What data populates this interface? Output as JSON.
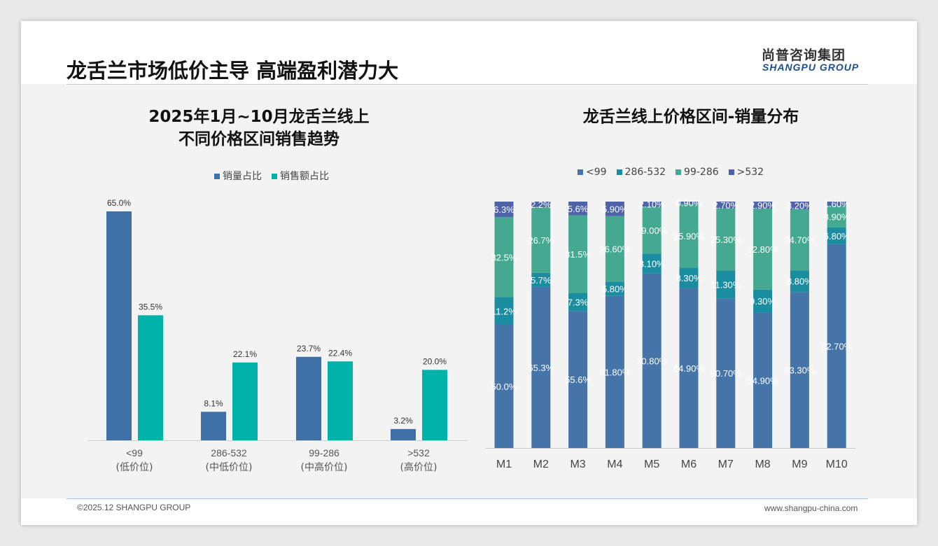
{
  "header": {
    "title": "龙舌兰市场低价主导 高端盈利潜力大",
    "logo_cn": "尚普咨询集团",
    "logo_en": "SHANGPU GROUP"
  },
  "footer": {
    "copyright": "©2025.12 SHANGPU GROUP",
    "website": "www.shangpu-china.com"
  },
  "chart_data": [
    {
      "type": "bar",
      "title": "2025年1月~10月龙舌兰线上",
      "subtitle": "不同价格区间销售趋势",
      "categories": [
        "<99",
        "286-532",
        "99-286",
        ">532"
      ],
      "category_sublabels": [
        "(低价位)",
        "(中低价位)",
        "(中高价位)",
        "(高价位)"
      ],
      "series": [
        {
          "name": "销量占比",
          "color": "#3f70a8",
          "values": [
            65.0,
            8.1,
            23.7,
            3.2
          ]
        },
        {
          "name": "销售额占比",
          "color": "#00b2a9",
          "values": [
            35.5,
            22.1,
            22.4,
            20.0
          ]
        }
      ],
      "ylim": [
        0,
        70
      ],
      "legend": "top",
      "unit": "%"
    },
    {
      "type": "stacked-bar",
      "title": "龙舌兰线上价格区间-销量分布",
      "categories": [
        "M1",
        "M2",
        "M3",
        "M4",
        "M5",
        "M6",
        "M7",
        "M8",
        "M9",
        "M10"
      ],
      "series": [
        {
          "name": "<99",
          "color": "#4574a9",
          "values": [
            50.0,
            65.3,
            55.6,
            61.8,
            70.8,
            64.9,
            60.7,
            54.9,
            63.3,
            82.7
          ],
          "labels": [
            "50.0%",
            "65.3%",
            "55.6%",
            "61.80%",
            "70.80%",
            "64.90%",
            "60.70%",
            "54.90%",
            "63.30%",
            "82.70%"
          ]
        },
        {
          "name": "286-532",
          "color": "#1b8da0",
          "values": [
            11.2,
            5.7,
            7.3,
            5.8,
            8.1,
            8.3,
            11.3,
            9.3,
            8.8,
            6.8
          ],
          "labels": [
            "11.2%",
            "5.7%",
            "7.3%",
            "5.80%",
            "8.10%",
            "8.30%",
            "11.30%",
            "9.30%",
            "8.80%",
            "6.80%"
          ]
        },
        {
          "name": "99-286",
          "color": "#45a890",
          "values": [
            32.5,
            26.7,
            31.5,
            26.6,
            19.0,
            25.9,
            25.3,
            32.8,
            24.7,
            8.9
          ],
          "labels": [
            "32.5%",
            "26.7%",
            "31.5%",
            "26.60%",
            "19.00%",
            "25.90%",
            "25.30%",
            "32.80%",
            "24.70%",
            "8.90%"
          ]
        },
        {
          "name": ">532",
          "color": "#4f64a8",
          "values": [
            6.3,
            2.2,
            5.6,
            5.9,
            2.1,
            0.9,
            2.7,
            2.9,
            3.2,
            1.6
          ],
          "labels": [
            "6.3%",
            "2.2%",
            "5.6%",
            "5.90%",
            "2.10%",
            "0.90%",
            "2.70%",
            "2.90%",
            "3.20%",
            "1.60%"
          ]
        }
      ],
      "ylim": [
        0,
        100
      ],
      "legend": "top",
      "unit": "%"
    }
  ]
}
